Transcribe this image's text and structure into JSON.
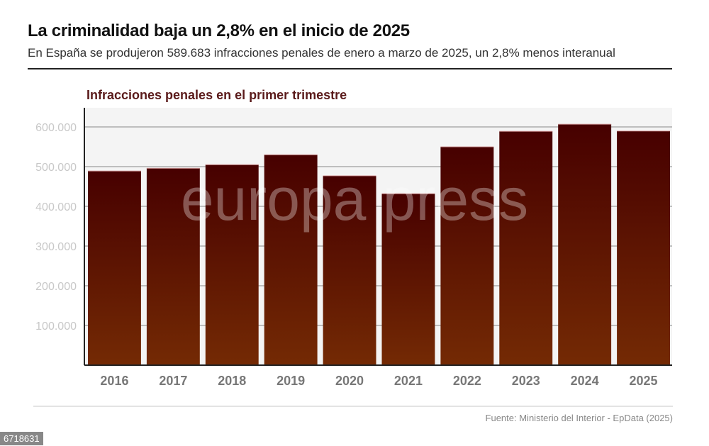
{
  "header": {
    "title": "La criminalidad baja un 2,8% en el inicio de 2025",
    "subtitle": "En España se produjeron 589.683 infracciones penales de enero a marzo de 2025, un 2,8% menos interanual"
  },
  "chart_data": {
    "type": "bar",
    "title": "Infracciones penales en el primer trimestre",
    "categories": [
      "2016",
      "2017",
      "2018",
      "2019",
      "2020",
      "2021",
      "2022",
      "2023",
      "2024",
      "2025"
    ],
    "values": [
      489000,
      496000,
      505000,
      530000,
      477000,
      432000,
      550000,
      589000,
      607000,
      589683
    ],
    "ylim": [
      0,
      650000
    ],
    "yticks": [
      100000,
      200000,
      300000,
      400000,
      500000,
      600000
    ],
    "ytick_labels": [
      "100.000",
      "200.000",
      "300.000",
      "400.000",
      "500.000",
      "600.000"
    ],
    "xlabel": "",
    "ylabel": "",
    "grid": true,
    "legend": "none",
    "colors": {
      "bar_top": "#470000",
      "bar_bottom": "#742a04",
      "plot_bg": "#f4f4f4"
    }
  },
  "watermark": "europa press",
  "footer": {
    "source": "Fuente: Ministerio del Interior - EpData (2025)",
    "image_id": "6718631"
  }
}
